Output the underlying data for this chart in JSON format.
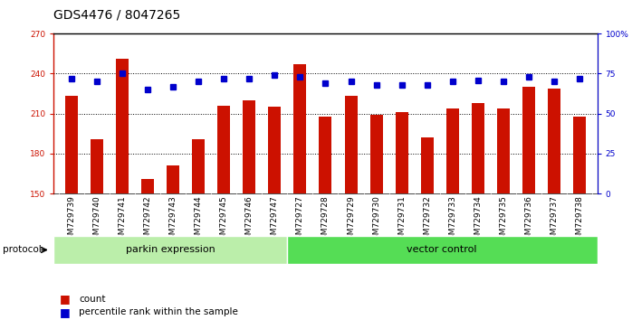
{
  "title": "GDS4476 / 8047265",
  "samples": [
    "GSM729739",
    "GSM729740",
    "GSM729741",
    "GSM729742",
    "GSM729743",
    "GSM729744",
    "GSM729745",
    "GSM729746",
    "GSM729747",
    "GSM729727",
    "GSM729728",
    "GSM729729",
    "GSM729730",
    "GSM729731",
    "GSM729732",
    "GSM729733",
    "GSM729734",
    "GSM729735",
    "GSM729736",
    "GSM729737",
    "GSM729738"
  ],
  "counts": [
    223,
    191,
    251,
    161,
    171,
    191,
    216,
    220,
    215,
    247,
    208,
    223,
    209,
    211,
    192,
    214,
    218,
    214,
    230,
    229,
    208
  ],
  "percentile": [
    72,
    70,
    75,
    65,
    67,
    70,
    72,
    72,
    74,
    73,
    69,
    70,
    68,
    68,
    68,
    70,
    71,
    70,
    73,
    70,
    72
  ],
  "bar_color": "#cc1100",
  "square_color": "#0000cc",
  "ylim_left": [
    150,
    270
  ],
  "ylim_right": [
    0,
    100
  ],
  "yticks_left": [
    150,
    180,
    210,
    240,
    270
  ],
  "ytick_labels_left": [
    "150",
    "180",
    "210",
    "240",
    "270"
  ],
  "yticks_right": [
    0,
    25,
    50,
    75,
    100
  ],
  "ytick_labels_right": [
    "0",
    "25",
    "50",
    "75",
    "100%"
  ],
  "group1_label": "parkin expression",
  "group1_n": 9,
  "group1_color": "#bbeeaa",
  "group2_label": "vector control",
  "group2_n": 12,
  "group2_color": "#55dd55",
  "protocol_label": "protocol",
  "legend_label1": "count",
  "legend_label2": "percentile rank within the sample",
  "tick_bg_color": "#bbbbbb",
  "plot_bg": "#ffffff",
  "fig_bg": "#ffffff",
  "grid_color": "#000000",
  "title_fontsize": 10,
  "tick_fontsize": 6.5,
  "group_fontsize": 8,
  "legend_fontsize": 7.5
}
